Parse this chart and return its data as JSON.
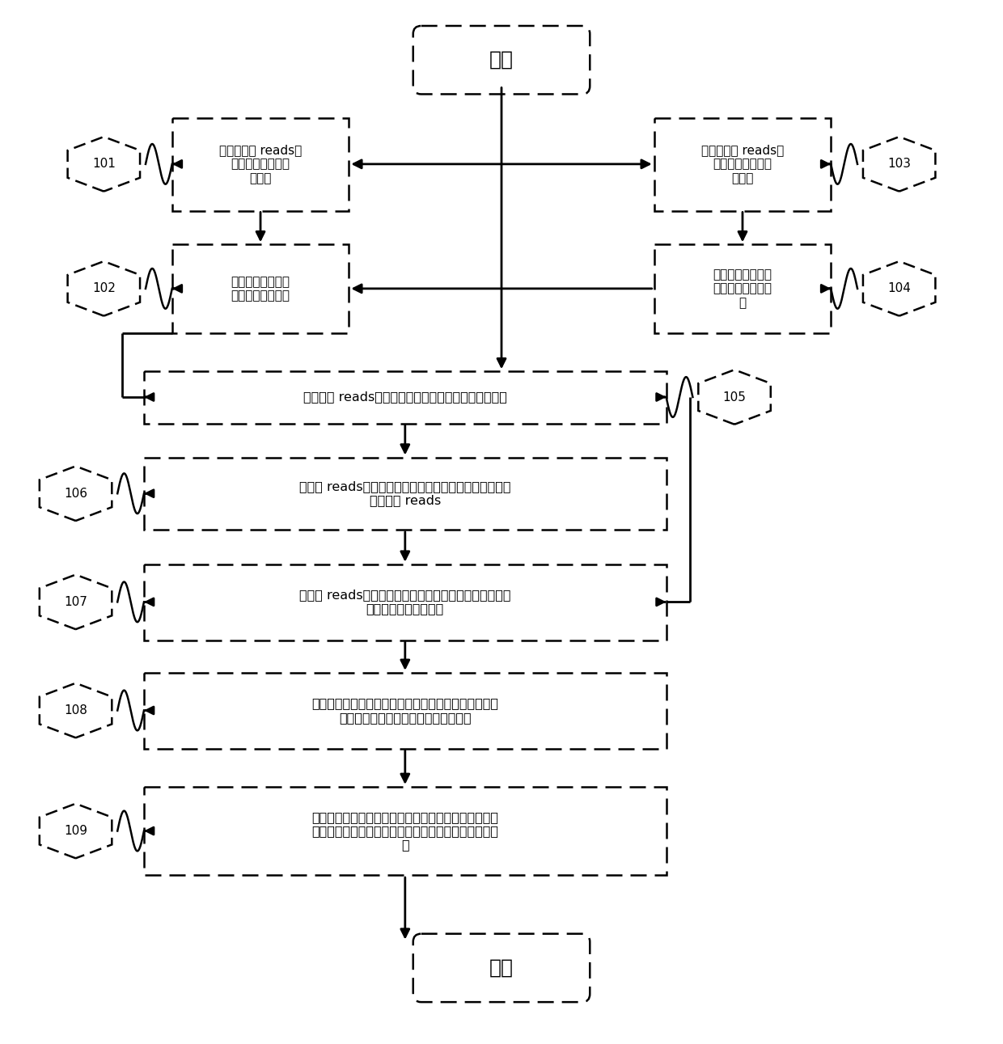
{
  "bg_color": "#ffffff",
  "start_label": "开始",
  "end_label": "结束",
  "box101_text": "原始二代短 reads过\n滤，获得高质量二\n代数据",
  "box103_text": "原始三代长 reads过\n滤，获得高质量三\n代数据",
  "box102_text": "二代数据纠错，获\n得高精准二代数据",
  "box104_text": "三代数据自纠错，\n获得三代自纠错数\n据",
  "box105_text": "将二代短 reads比对到三代数据上，并统计单碘基深度",
  "box106_text": "将三代 reads中两端未覆盖区域进行切除并抛弃覆盖度低\n于阈值的 reads",
  "box107_text": "将三代 reads中单碘基深度低于阈值的区域进行屏蔽，获\n得三代自纠错屏蔽数据",
  "box108_text": "基于二代数据补洞算法，将含洞的三代自纠错补洞数据\n进行补洞，得到初级三代二次纠错数据",
  "box109_text": "初级三代二次纠错数据补洞序列与原位置屏蔽区域序列\n进行比对、还原、替换处理，得到终极三代二次纠错数\n据",
  "label101": "101",
  "label102": "102",
  "label103": "103",
  "label104": "104",
  "label105": "105",
  "label106": "106",
  "label107": "107",
  "label108": "108",
  "label109": "109"
}
